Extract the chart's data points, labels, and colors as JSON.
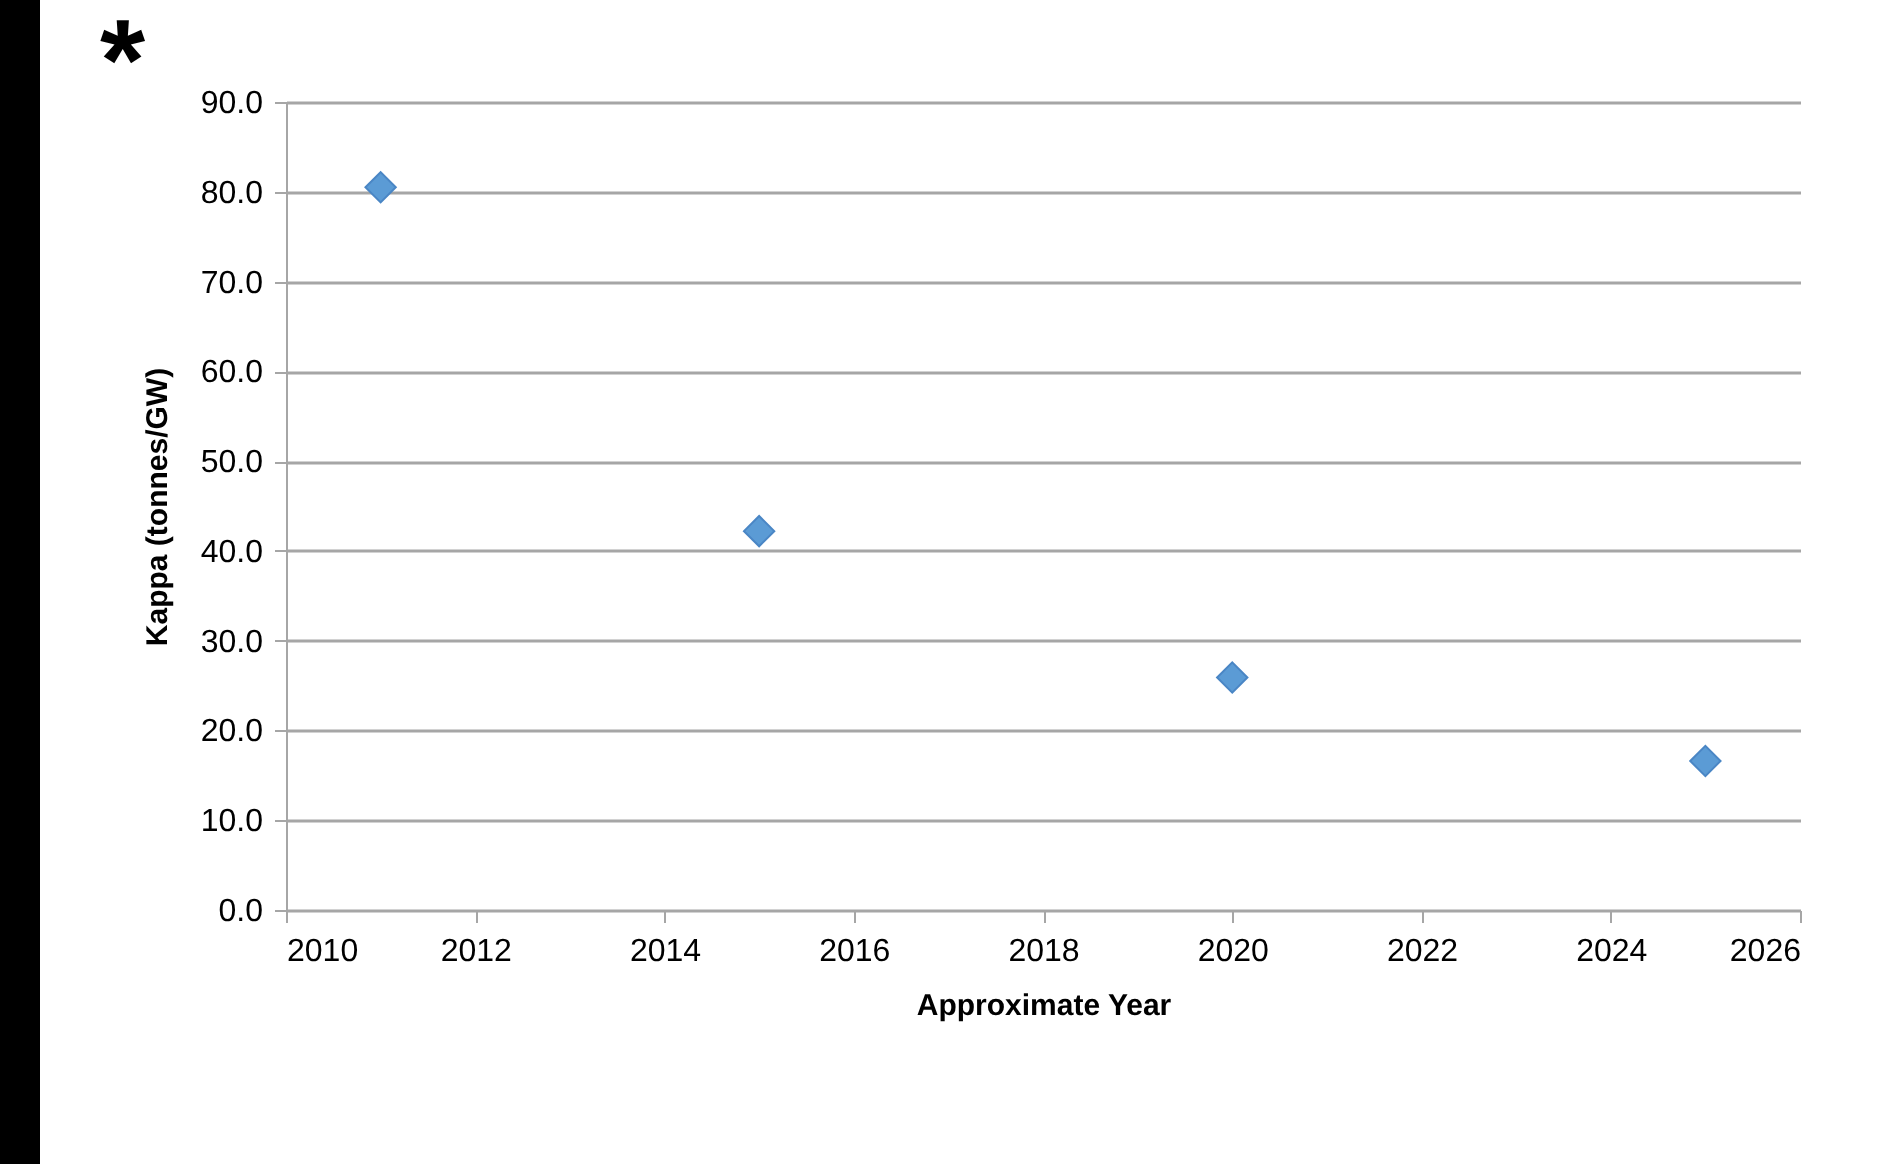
{
  "chart_data": {
    "type": "scatter",
    "xlabel": "Approximate Year",
    "ylabel": "Kappa (tonnes/GW)",
    "annotations": [
      "*"
    ],
    "x": [
      2011,
      2015,
      2020,
      2025
    ],
    "series": [
      {
        "color": "#5b9bd5",
        "values": [
          80.5,
          42.2,
          25.9,
          16.6
        ]
      }
    ],
    "marker": "diamond",
    "grid": "y",
    "legend": false,
    "xlim": [
      2010,
      2026
    ],
    "xticks": [
      2010,
      2012,
      2014,
      2016,
      2018,
      2020,
      2022,
      2024,
      2026
    ],
    "ylim": [
      0,
      90
    ],
    "yticks": [
      {
        "value": 0,
        "label": "0.0"
      },
      {
        "value": 10,
        "label": "10.0"
      },
      {
        "value": 20,
        "label": "20.0"
      },
      {
        "value": 30,
        "label": "30.0"
      },
      {
        "value": 40,
        "label": "40.0"
      },
      {
        "value": 50,
        "label": "50.0"
      },
      {
        "value": 60,
        "label": "60.0"
      },
      {
        "value": 70,
        "label": "70.0"
      },
      {
        "value": 80,
        "label": "80.0"
      },
      {
        "value": 90,
        "label": "90.0"
      }
    ]
  }
}
